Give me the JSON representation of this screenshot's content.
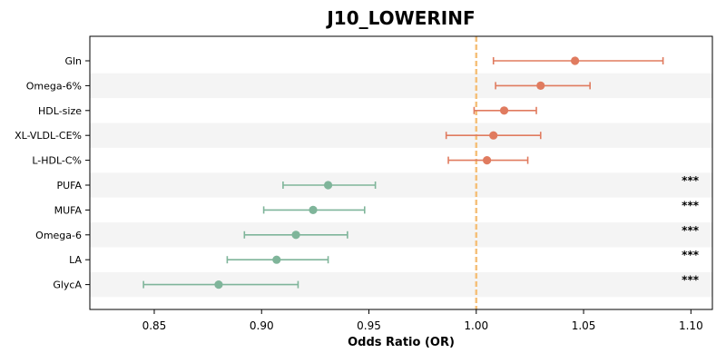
{
  "chart_data": {
    "type": "forest",
    "title": "J10_LOWERINF",
    "xlabel": "Odds Ratio (OR)",
    "xlim": [
      0.82,
      1.11
    ],
    "xticks": [
      "0.85",
      "0.90",
      "0.95",
      "1.00",
      "1.05",
      "1.10"
    ],
    "xtick_values": [
      0.85,
      0.9,
      0.95,
      1.0,
      1.05,
      1.1
    ],
    "reference_line": 1.0,
    "grid": false,
    "alternating_row_shading": true,
    "colors": {
      "positive": "#e07b5f",
      "negative": "#7fb59a",
      "reference": "#f5c07a",
      "row_shade": "#f4f4f4"
    },
    "rows": [
      {
        "label": "Gln",
        "or": 1.046,
        "ci_low": 1.008,
        "ci_high": 1.087,
        "sig": ""
      },
      {
        "label": "Omega-6%",
        "or": 1.03,
        "ci_low": 1.009,
        "ci_high": 1.053,
        "sig": ""
      },
      {
        "label": "HDL-size",
        "or": 1.013,
        "ci_low": 0.999,
        "ci_high": 1.028,
        "sig": ""
      },
      {
        "label": "XL-VLDL-CE%",
        "or": 1.008,
        "ci_low": 0.986,
        "ci_high": 1.03,
        "sig": ""
      },
      {
        "label": "L-HDL-C%",
        "or": 1.005,
        "ci_low": 0.987,
        "ci_high": 1.024,
        "sig": ""
      },
      {
        "label": "PUFA",
        "or": 0.931,
        "ci_low": 0.91,
        "ci_high": 0.953,
        "sig": "***"
      },
      {
        "label": "MUFA",
        "or": 0.924,
        "ci_low": 0.901,
        "ci_high": 0.948,
        "sig": "***"
      },
      {
        "label": "Omega-6",
        "or": 0.916,
        "ci_low": 0.892,
        "ci_high": 0.94,
        "sig": "***"
      },
      {
        "label": "LA",
        "or": 0.907,
        "ci_low": 0.884,
        "ci_high": 0.931,
        "sig": "***"
      },
      {
        "label": "GlycA",
        "or": 0.88,
        "ci_low": 0.845,
        "ci_high": 0.917,
        "sig": "***"
      }
    ]
  }
}
